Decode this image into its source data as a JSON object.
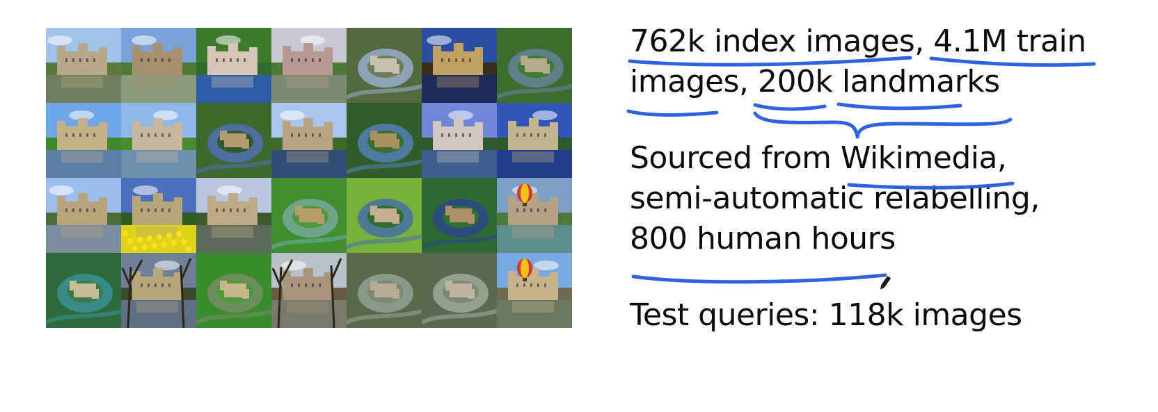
{
  "image_grid": {
    "rows": 4,
    "columns": 7,
    "tiles": [
      {
        "sky": "#9fc3ea",
        "ground": "#5a7a3a",
        "water": "#6e7f5e",
        "castle": "#b9a887",
        "scene": "castle-moat"
      },
      {
        "sky": "#7aa2d8",
        "ground": "#4f7a33",
        "water": "#8b9a78",
        "castle": "#a8916c",
        "scene": "castle-moat"
      },
      {
        "sky": "#3c7a2c",
        "ground": "#2f6b2a",
        "water": "#2c5ea8",
        "castle": "#d7c6b6",
        "scene": "castle-water"
      },
      {
        "sky": "#c8c8d0",
        "ground": "#4b7a35",
        "water": "#7b8a70",
        "castle": "#b89a92",
        "scene": "castle-moat"
      },
      {
        "sky": "#6c7a58",
        "ground": "#516b3c",
        "water": "#8aa3b5",
        "castle": "#c9c0b0",
        "scene": "aerial"
      },
      {
        "sky": "#2a4fa0",
        "ground": "#3a2f1c",
        "water": "#1d2c5a",
        "castle": "#c2a064",
        "scene": "castle-night"
      },
      {
        "sky": "#3f7a2e",
        "ground": "#3b6e2c",
        "water": "#5c7f8a",
        "castle": "#b7aa8a",
        "scene": "aerial"
      },
      {
        "sky": "#6fa6e6",
        "ground": "#3f8a2e",
        "water": "#5b7ea8",
        "castle": "#c6b08a",
        "scene": "castle-moat"
      },
      {
        "sky": "#8fb8ea",
        "ground": "#4c8a32",
        "water": "#6d8fb0",
        "castle": "#c7b79b",
        "scene": "castle-field"
      },
      {
        "sky": "#2f5a2a",
        "ground": "#3a6a2c",
        "water": "#4d6fa0",
        "castle": "#b49a70",
        "scene": "aerial"
      },
      {
        "sky": "#a9c7ee",
        "ground": "#3e6a2e",
        "water": "#2f4f7a",
        "castle": "#b7a680",
        "scene": "castle-moat"
      },
      {
        "sky": "#3a6e2a",
        "ground": "#2f5e28",
        "water": "#4c7aa0",
        "castle": "#a99262",
        "scene": "aerial"
      },
      {
        "sky": "#6f86d9",
        "ground": "#2e5c2a",
        "water": "#3b5f8e",
        "castle": "#d2c7bf",
        "scene": "castle-tower"
      },
      {
        "sky": "#2f56b8",
        "ground": "#2d5a2c",
        "water": "#1f3e86",
        "castle": "#c5b490",
        "scene": "castle-moat"
      },
      {
        "sky": "#9cc0ee",
        "ground": "#4a6f3a",
        "water": "#7a8ea0",
        "castle": "#b9a37c",
        "scene": "castle-moat"
      },
      {
        "sky": "#4d6fbd",
        "ground": "#2f5c21",
        "water": "#e0d21a",
        "castle": "#b7a67a",
        "scene": "daffodils"
      },
      {
        "sky": "#b8c6e0",
        "ground": "#3d5a2e",
        "water": "#5b6a58",
        "castle": "#c0aa86",
        "scene": "castle-moat"
      },
      {
        "sky": "#4a9a3a",
        "ground": "#3f8f31",
        "water": "#6fa38a",
        "castle": "#b89c6a",
        "scene": "aerial"
      },
      {
        "sky": "#2f6e2a",
        "ground": "#77b23c",
        "water": "#4e7a95",
        "castle": "#c6b08c",
        "scene": "aerial"
      },
      {
        "sky": "#2f6f35",
        "ground": "#2d6a31",
        "water": "#2c4c7a",
        "castle": "#b09068",
        "scene": "aerial"
      },
      {
        "sky": "#7aa0c8",
        "ground": "#4c7a3a",
        "water": "#5f8d8c",
        "castle": "#b5a283",
        "scene": "balloon-lake"
      },
      {
        "sky": "#3d7a4a",
        "ground": "#2d6a3a",
        "water": "#3b8a8a",
        "castle": "#c8bb98",
        "scene": "aerial"
      },
      {
        "sky": "#6f7f9a",
        "ground": "#3a4a2a",
        "water": "#5e6f86",
        "castle": "#b8a67c",
        "scene": "castle-trees"
      },
      {
        "sky": "#4a9a3a",
        "ground": "#3a8a2e",
        "water": "#6a8f5a",
        "castle": "#c7b58c",
        "scene": "aerial"
      },
      {
        "sky": "#b8c2c8",
        "ground": "#6a5a40",
        "water": "#7a7a6a",
        "castle": "#a8957a",
        "scene": "castle-trees"
      },
      {
        "sky": "#7a8a6a",
        "ground": "#5a6a48",
        "water": "#8a9a8a",
        "castle": "#b8ab95",
        "scene": "aerial"
      },
      {
        "sky": "#7a8a70",
        "ground": "#5a6a50",
        "water": "#93a08e",
        "castle": "#bfb4a0",
        "scene": "aerial"
      },
      {
        "sky": "#78a9e0",
        "ground": "#6f6a50",
        "water": "#6a7a60",
        "castle": "#c8b48a",
        "scene": "balloon-castle"
      }
    ]
  },
  "slide": {
    "lines": [
      "762k index images, 4.1M train",
      "images, 200k landmarks",
      "Sourced from Wikimedia,",
      "semi-automatic relabelling,",
      "800 human hours",
      "Test queries:  118k images"
    ]
  },
  "colors": {
    "annotation_ink": "#2b63e0",
    "text": "#0b0b0b"
  },
  "icons": {
    "pen_cursor": "pen-cursor-icon"
  }
}
